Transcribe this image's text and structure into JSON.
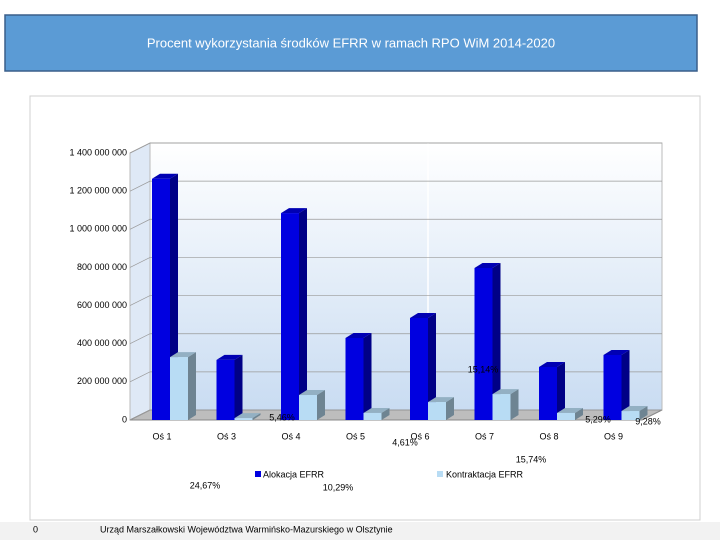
{
  "chart_data": {
    "type": "bar3d",
    "title": "Procent wykorzystania środków EFRR w ramach RPO WiM 2014-2020",
    "categories": [
      "Oś 1",
      "Oś 3",
      "Oś 4",
      "Oś 5",
      "Oś 6",
      "Oś 7",
      "Oś 8",
      "Oś 9"
    ],
    "series": [
      {
        "name": "Alokacja EFRR",
        "color": "#0000e0",
        "values": [
          1265000000,
          315000000,
          1085000000,
          430000000,
          535000000,
          797000000,
          278000000,
          341000000
        ]
      },
      {
        "name": "Kontraktacja EFRR",
        "color": "#b8dcf4",
        "values": [
          330000000,
          10000000,
          131000000,
          37000000,
          94000000,
          136000000,
          37000000,
          47000000
        ]
      }
    ],
    "ylim": [
      0,
      1400000000
    ],
    "yticks": [
      0,
      {
        "value": 200000000,
        "label": "200 000 000"
      },
      {
        "value": 400000000,
        "label": "400 000 000"
      },
      {
        "value": 600000000,
        "label": "600 000 000"
      },
      {
        "value": 800000000,
        "label": "800 000 000"
      },
      {
        "value": 1000000000,
        "label": "1 000 000 000"
      },
      {
        "value": 1200000000,
        "label": "1 200 000 000"
      },
      {
        "value": 1400000000,
        "label": "1 400 000 000"
      }
    ],
    "grid": true,
    "annotations": [
      "24,67%",
      "5,46%",
      "4,61%",
      "15,74%",
      "10,29%",
      "5,29%",
      "9,28%",
      "15,14%"
    ]
  },
  "footer": {
    "page": "0",
    "text": "Urząd Marszałkowski Województwa Warmińsko-Mazurskiego w Olsztynie"
  }
}
